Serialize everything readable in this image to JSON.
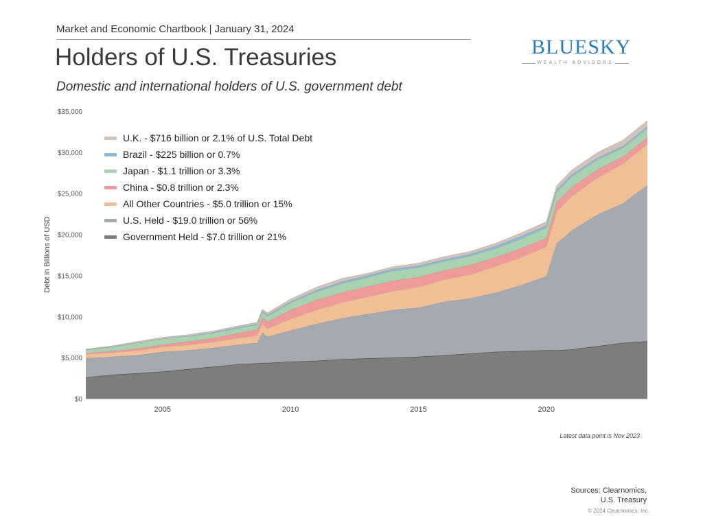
{
  "header": {
    "kicker": "Market and Economic Chartbook | January 31, 2024",
    "title": "Holders of U.S. Treasuries",
    "subtitle": "Domestic and international holders of U.S. government debt"
  },
  "logo": {
    "name": "BLUESKY",
    "tagline": "WEALTH ADVISORS"
  },
  "chart_data": {
    "type": "area",
    "stacked": true,
    "title": "Holders of U.S. Treasuries",
    "ylabel": "Debt in Billions of USD",
    "xlabel": "",
    "xlim": [
      2002,
      2023.95
    ],
    "ylim": [
      0,
      35000
    ],
    "yticks": [
      0,
      5000,
      10000,
      15000,
      20000,
      25000,
      30000,
      35000
    ],
    "ytick_labels": [
      "$0",
      "$5,000",
      "$10,000",
      "$15,000",
      "$20,000",
      "$25,000",
      "$30,000",
      "$35,000"
    ],
    "xticks": [
      2005,
      2010,
      2015,
      2020
    ],
    "xtick_labels": [
      "2005",
      "2010",
      "2015",
      "2020"
    ],
    "grid": false,
    "legend_position": "top-left",
    "x": [
      2002,
      2003,
      2004,
      2005,
      2006,
      2007,
      2008,
      2008.7,
      2008.9,
      2009.1,
      2010,
      2011,
      2012,
      2013,
      2014,
      2015,
      2016,
      2017,
      2018,
      2019,
      2020,
      2020.4,
      2021,
      2022,
      2023,
      2023.95
    ],
    "series": [
      {
        "name": "Government Held - $7.0 trillion or 21%",
        "color": "#7d7d7d",
        "values": [
          2600,
          2900,
          3100,
          3300,
          3600,
          3900,
          4200,
          4300,
          4350,
          4350,
          4500,
          4600,
          4800,
          4900,
          5000,
          5100,
          5300,
          5500,
          5700,
          5800,
          5900,
          5900,
          6000,
          6400,
          6800,
          7000
        ]
      },
      {
        "name": "U.S. Held - $19.0 trillion or 56%",
        "color": "#a4aab0",
        "values": [
          2300,
          2200,
          2200,
          2400,
          2300,
          2300,
          2400,
          2500,
          3700,
          3200,
          3800,
          4500,
          5000,
          5400,
          5800,
          6000,
          6500,
          6700,
          7200,
          8000,
          9000,
          13000,
          14500,
          16000,
          17000,
          19000
        ]
      },
      {
        "name": "All Other Countries - $5.0 trillion or 15%",
        "color": "#f0bf96",
        "values": [
          500,
          500,
          550,
          600,
          650,
          700,
          800,
          900,
          1100,
          1000,
          1400,
          1700,
          1900,
          2100,
          2300,
          2500,
          2700,
          2900,
          3200,
          3400,
          3600,
          3900,
          4200,
          4500,
          4800,
          5000
        ]
      },
      {
        "name": "China - $0.8 trillion or 2.3%",
        "color": "#ee9a9a",
        "values": [
          150,
          200,
          250,
          300,
          400,
          500,
          600,
          700,
          750,
          800,
          1100,
          1200,
          1200,
          1250,
          1250,
          1200,
          1100,
          1150,
          1100,
          1100,
          1050,
          1100,
          1050,
          1000,
          850,
          800
        ]
      },
      {
        "name": "Japan - $1.1 trillion or 3.3%",
        "color": "#a9d2b0",
        "values": [
          400,
          500,
          700,
          700,
          650,
          600,
          600,
          600,
          650,
          700,
          850,
          1000,
          1100,
          1100,
          1200,
          1150,
          1100,
          1100,
          1050,
          1150,
          1250,
          1250,
          1300,
          1200,
          1100,
          1100
        ]
      },
      {
        "name": "Brazil - $225 billion or 0.7%",
        "color": "#8fb6d6",
        "values": [
          20,
          20,
          20,
          30,
          40,
          100,
          140,
          130,
          130,
          140,
          160,
          200,
          230,
          250,
          260,
          250,
          250,
          260,
          300,
          310,
          280,
          270,
          240,
          220,
          220,
          225
        ]
      },
      {
        "name": "U.K. - $716 billion or 2.1% of U.S. Total Debt",
        "color": "#d3c3b8",
        "values": [
          80,
          100,
          120,
          150,
          150,
          150,
          160,
          180,
          200,
          250,
          300,
          350,
          400,
          250,
          250,
          300,
          330,
          300,
          350,
          400,
          450,
          480,
          550,
          650,
          700,
          716
        ]
      }
    ],
    "note": "Latest data point is Nov 2023"
  },
  "footer": {
    "sources_line1": "Sources: Clearnomics,",
    "sources_line2": "U.S. Treasury",
    "copyright": "© 2024 Clearnomics, Inc."
  }
}
